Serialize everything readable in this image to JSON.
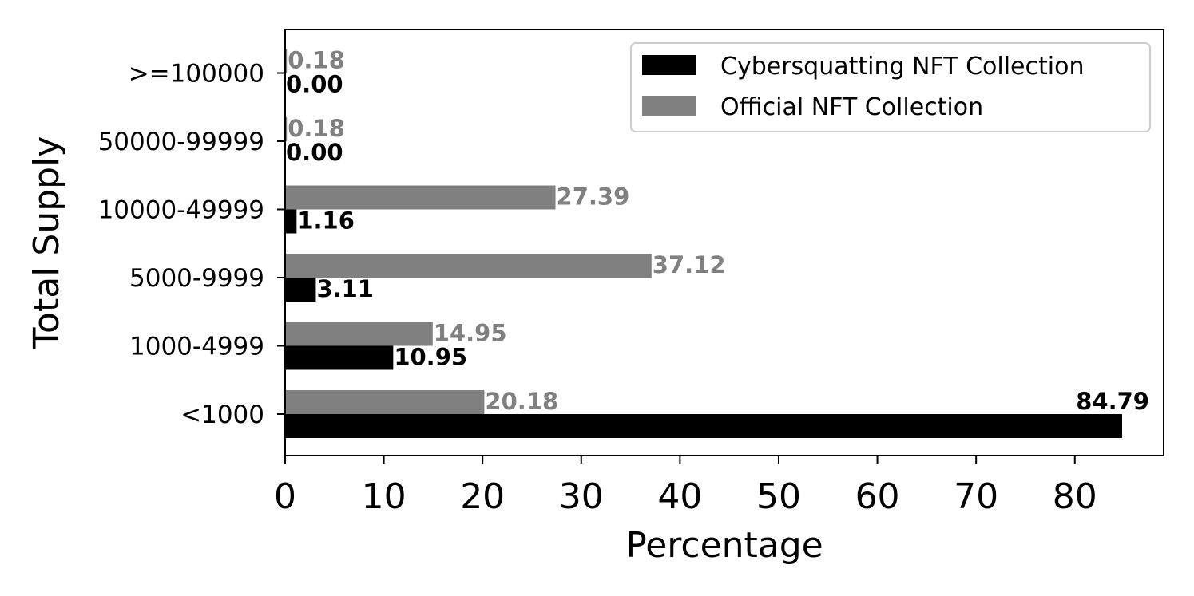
{
  "chart_data": {
    "type": "bar",
    "orientation": "horizontal",
    "categories": [
      "<1000",
      "1000-4999",
      "5000-9999",
      "10000-49999",
      "50000-99999",
      ">=100000"
    ],
    "series": [
      {
        "name": "Cybersquatting NFT Collection",
        "color": "#000000",
        "values": [
          84.79,
          10.95,
          3.11,
          1.16,
          0.0,
          0.0
        ],
        "labels": [
          "84.79",
          "10.95",
          "3.11",
          "1.16",
          "0.00",
          "0.00"
        ]
      },
      {
        "name": "Official NFT Collection",
        "color": "#808080",
        "values": [
          20.18,
          14.95,
          37.12,
          27.39,
          0.18,
          0.18
        ],
        "labels": [
          "20.18",
          "14.95",
          "37.12",
          "27.39",
          "0.18",
          "0.18"
        ]
      }
    ],
    "xlabel": "Percentage",
    "ylabel": "Total Supply",
    "xlim": [
      0,
      89
    ],
    "xticks": [
      0,
      10,
      20,
      30,
      40,
      50,
      60,
      70,
      80
    ],
    "xtick_labels": [
      "0",
      "10",
      "20",
      "30",
      "40",
      "50",
      "60",
      "70",
      "80"
    ],
    "grid": false,
    "legend_position": "top-right"
  }
}
